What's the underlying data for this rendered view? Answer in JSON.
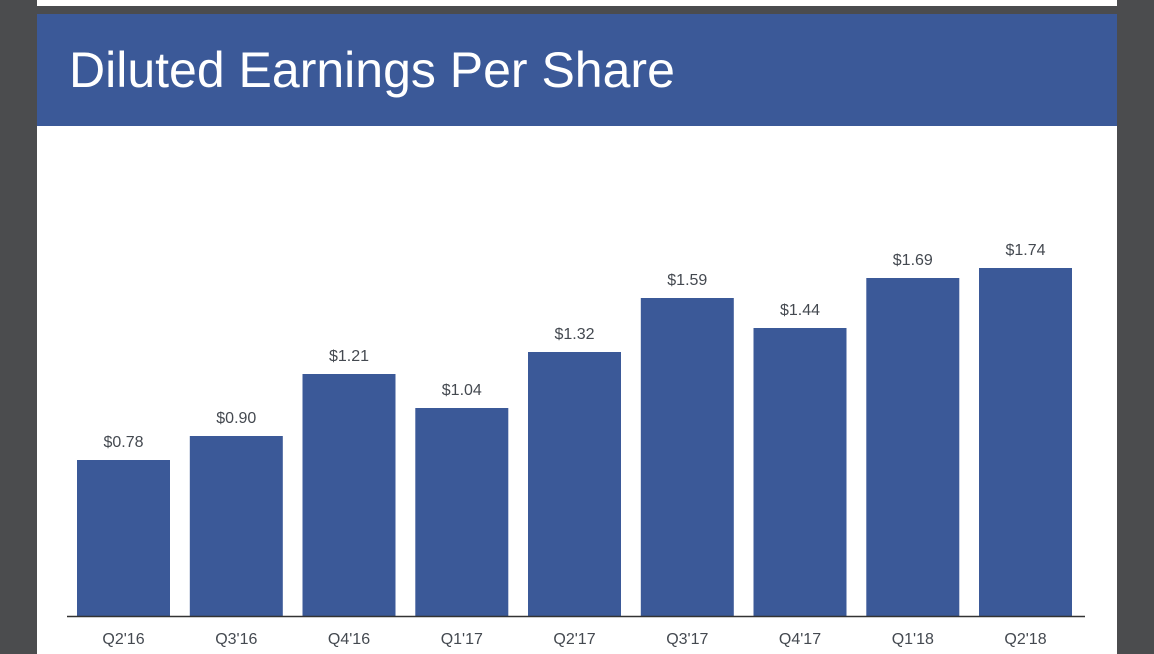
{
  "colors": {
    "bar": "#3b5998",
    "header": "#3b5998",
    "label": "#444950",
    "axis": "#333333"
  },
  "chart_data": {
    "type": "bar",
    "title": "Diluted Earnings Per Share",
    "categories": [
      "Q2'16",
      "Q3'16",
      "Q4'16",
      "Q1'17",
      "Q2'17",
      "Q3'17",
      "Q4'17",
      "Q1'18",
      "Q2'18"
    ],
    "values": [
      0.78,
      0.9,
      1.21,
      1.04,
      1.32,
      1.59,
      1.44,
      1.69,
      1.74
    ],
    "value_labels": [
      "$0.78",
      "$0.90",
      "$1.21",
      "$1.04",
      "$1.32",
      "$1.59",
      "$1.44",
      "$1.69",
      "$1.74"
    ],
    "xlabel": "",
    "ylabel": "",
    "ylim": [
      0,
      2.0
    ],
    "grid": false,
    "legend": "none"
  }
}
